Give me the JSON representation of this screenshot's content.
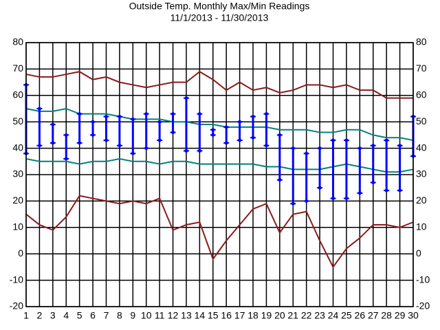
{
  "chart_data": {
    "type": "line",
    "title": "Outside Temp. Monthly Max/Min Readings",
    "subtitle": "11/1/2013 - 11/30/2013",
    "x": [
      1,
      2,
      3,
      4,
      5,
      6,
      7,
      8,
      9,
      10,
      11,
      12,
      13,
      14,
      15,
      16,
      17,
      18,
      19,
      20,
      21,
      22,
      23,
      24,
      25,
      26,
      27,
      28,
      29,
      30
    ],
    "xlim": [
      1,
      30
    ],
    "ylim": [
      -20,
      80
    ],
    "yticks": [
      -20,
      -10,
      0,
      10,
      20,
      30,
      40,
      50,
      60,
      70,
      80
    ],
    "grid": true,
    "series": [
      {
        "color": "#8b1a1a",
        "values": [
          68,
          67,
          67,
          68,
          69,
          66,
          67,
          65,
          64,
          63,
          64,
          65,
          65,
          69,
          66,
          62,
          65,
          62,
          63,
          61,
          62,
          64,
          64,
          63,
          64,
          62,
          62,
          59,
          59,
          59
        ]
      },
      {
        "color": "#008080",
        "values": [
          55,
          54,
          54,
          55,
          53,
          53,
          53,
          52,
          51,
          51,
          51,
          50,
          50,
          49,
          49,
          48,
          48,
          48,
          48,
          47,
          47,
          47,
          46,
          46,
          47,
          47,
          45,
          44,
          44,
          43
        ]
      },
      {
        "color": "#008080",
        "values": [
          36,
          35,
          35,
          35,
          34,
          35,
          35,
          36,
          35,
          35,
          34,
          35,
          35,
          34,
          34,
          34,
          34,
          34,
          33,
          33,
          32,
          32,
          32,
          33,
          34,
          33,
          32,
          31,
          31,
          32
        ]
      },
      {
        "color": "#8b1a1a",
        "values": [
          15,
          11,
          9,
          14,
          22,
          21,
          20,
          19,
          20,
          19,
          21,
          9,
          11,
          12,
          -2,
          5,
          11,
          17,
          19,
          8,
          15,
          16,
          5,
          -5,
          2,
          6,
          11,
          11,
          10,
          12
        ]
      }
    ],
    "ranges": {
      "color": "#0000ff",
      "high": [
        64,
        55,
        49,
        45,
        53,
        50,
        52,
        52,
        51,
        53,
        50,
        53,
        59,
        53,
        47,
        48,
        50,
        52,
        53,
        45,
        40,
        38,
        40,
        43,
        43,
        40,
        41,
        43,
        41,
        52
      ],
      "low": [
        38,
        41,
        42,
        36,
        42,
        45,
        43,
        41,
        38,
        40,
        43,
        46,
        39,
        39,
        45,
        42,
        43,
        44,
        41,
        28,
        19,
        20,
        25,
        21,
        21,
        23,
        27,
        24,
        24,
        37
      ]
    }
  }
}
